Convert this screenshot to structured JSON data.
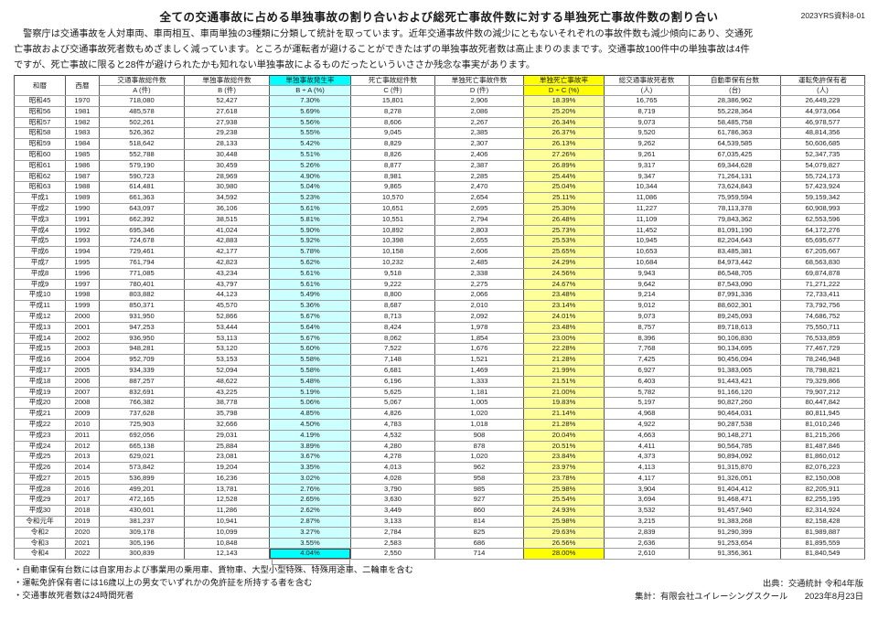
{
  "meta": {
    "title": "全ての交通事故に占める単独事故の割り合いおよび総死亡事故件数に対する単独死亡事故件数の割り合い",
    "doc_ref": "2023YRS資料8-01"
  },
  "intro": {
    "lines": [
      "　警察庁は交通事故を人対車両、車両相互、車両単独の3種類に分類して統計を取っています。近年交通事故件数の減少にともないそれぞれの事故件数も減少傾向にあり、交通死",
      "亡事故および交通事故死者数もめざましく減っています。ところが運転者が避けることができたはずの単独事故死者数は高止まりのままです。交通事故100件中の単独事故は4件",
      "ですが、死亡事故に限ると28件が避けられたかも知れない単独事故によるものだったといういささか残念な事実があります。"
    ]
  },
  "table": {
    "era_header": "和暦",
    "year_header": "西暦",
    "columns": [
      {
        "l1": "交通事故総件数",
        "l2": "A (件)"
      },
      {
        "l1": "単独事故総件数",
        "l2": "B (件)"
      },
      {
        "l1": "単独事故発生率",
        "l2": "B ÷ A (%)"
      },
      {
        "l1": "死亡事故総件数",
        "l2": "C (件)"
      },
      {
        "l1": "単独死亡事故件数",
        "l2": "D (件)"
      },
      {
        "l1": "単独死亡事故率",
        "l2": "D ÷ C (%)"
      },
      {
        "l1": "総交通事故死者数",
        "l2": "(人)"
      },
      {
        "l1": "自動車保有台数",
        "l2": "(台)"
      },
      {
        "l1": "運転免許保有者",
        "l2": "(人)"
      }
    ],
    "rows": [
      [
        "昭和45",
        "1970",
        "718,080",
        "52,427",
        "7.30%",
        "15,801",
        "2,906",
        "18.39%",
        "16,765",
        "28,386,962",
        "26,449,229"
      ],
      [
        "昭和56",
        "1981",
        "485,578",
        "27,618",
        "5.69%",
        "8,278",
        "2,086",
        "25.20%",
        "8,719",
        "55,228,364",
        "44,973,064"
      ],
      [
        "昭和57",
        "1982",
        "502,261",
        "27,938",
        "5.56%",
        "8,606",
        "2,267",
        "26.34%",
        "9,073",
        "58,485,758",
        "46,978,577"
      ],
      [
        "昭和58",
        "1983",
        "526,362",
        "29,238",
        "5.55%",
        "9,045",
        "2,385",
        "26.37%",
        "9,520",
        "61,786,363",
        "48,814,356"
      ],
      [
        "昭和59",
        "1984",
        "518,642",
        "28,133",
        "5.42%",
        "8,829",
        "2,307",
        "26.13%",
        "9,262",
        "64,539,585",
        "50,606,685"
      ],
      [
        "昭和60",
        "1985",
        "552,788",
        "30,448",
        "5.51%",
        "8,826",
        "2,406",
        "27.26%",
        "9,261",
        "67,035,425",
        "52,347,735"
      ],
      [
        "昭和61",
        "1986",
        "579,190",
        "30,459",
        "5.26%",
        "8,877",
        "2,387",
        "26.89%",
        "9,317",
        "69,344,628",
        "54,079,827"
      ],
      [
        "昭和62",
        "1987",
        "590,723",
        "28,969",
        "4.90%",
        "8,981",
        "2,285",
        "25.44%",
        "9,347",
        "71,264,131",
        "55,724,173"
      ],
      [
        "昭和63",
        "1988",
        "614,481",
        "30,980",
        "5.04%",
        "9,865",
        "2,470",
        "25.04%",
        "10,344",
        "73,624,843",
        "57,423,924"
      ],
      [
        "平成1",
        "1989",
        "661,363",
        "34,592",
        "5.23%",
        "10,570",
        "2,654",
        "25.11%",
        "11,086",
        "75,959,594",
        "59,159,342"
      ],
      [
        "平成2",
        "1990",
        "643,097",
        "36,106",
        "5.61%",
        "10,651",
        "2,695",
        "25.30%",
        "11,227",
        "78,113,378",
        "60,908,993"
      ],
      [
        "平成3",
        "1991",
        "662,392",
        "38,515",
        "5.81%",
        "10,551",
        "2,794",
        "26.48%",
        "11,109",
        "79,843,362",
        "62,553,596"
      ],
      [
        "平成4",
        "1992",
        "695,346",
        "41,024",
        "5.90%",
        "10,892",
        "2,803",
        "25.73%",
        "11,452",
        "81,091,190",
        "64,172,276"
      ],
      [
        "平成5",
        "1993",
        "724,678",
        "42,883",
        "5.92%",
        "10,398",
        "2,655",
        "25.53%",
        "10,945",
        "82,204,643",
        "65,695,677"
      ],
      [
        "平成6",
        "1994",
        "729,461",
        "42,177",
        "5.78%",
        "10,158",
        "2,606",
        "25.65%",
        "10,653",
        "83,485,381",
        "67,205,667"
      ],
      [
        "平成7",
        "1995",
        "761,794",
        "42,823",
        "5.62%",
        "10,232",
        "2,485",
        "24.29%",
        "10,684",
        "84,973,442",
        "68,563,830"
      ],
      [
        "平成8",
        "1996",
        "771,085",
        "43,234",
        "5.61%",
        "9,518",
        "2,338",
        "24.56%",
        "9,943",
        "86,548,705",
        "69,874,878"
      ],
      [
        "平成9",
        "1997",
        "780,401",
        "43,797",
        "5.61%",
        "9,222",
        "2,275",
        "24.67%",
        "9,642",
        "87,543,090",
        "71,271,222"
      ],
      [
        "平成10",
        "1998",
        "803,882",
        "44,123",
        "5.49%",
        "8,800",
        "2,066",
        "23.48%",
        "9,214",
        "87,991,336",
        "72,733,411"
      ],
      [
        "平成11",
        "1999",
        "850,371",
        "45,570",
        "5.36%",
        "8,687",
        "2,010",
        "23.14%",
        "9,012",
        "88,602,301",
        "73,792,756"
      ],
      [
        "平成12",
        "2000",
        "931,950",
        "52,866",
        "5.67%",
        "8,713",
        "2,092",
        "24.01%",
        "9,073",
        "89,245,093",
        "74,686,752"
      ],
      [
        "平成13",
        "2001",
        "947,253",
        "53,444",
        "5.64%",
        "8,424",
        "1,978",
        "23.48%",
        "8,757",
        "89,718,613",
        "75,550,711"
      ],
      [
        "平成14",
        "2002",
        "936,950",
        "53,113",
        "5.67%",
        "8,062",
        "1,854",
        "23.00%",
        "8,396",
        "90,106,830",
        "76,533,859"
      ],
      [
        "平成15",
        "2003",
        "948,281",
        "53,120",
        "5.60%",
        "7,522",
        "1,676",
        "22.28%",
        "7,768",
        "90,134,695",
        "77,467,729"
      ],
      [
        "平成16",
        "2004",
        "952,709",
        "53,153",
        "5.58%",
        "7,148",
        "1,521",
        "21.28%",
        "7,425",
        "90,456,094",
        "78,246,948"
      ],
      [
        "平成17",
        "2005",
        "934,339",
        "52,094",
        "5.58%",
        "6,681",
        "1,469",
        "21.99%",
        "6,927",
        "91,383,065",
        "78,798,821"
      ],
      [
        "平成18",
        "2006",
        "887,257",
        "48,622",
        "5.48%",
        "6,196",
        "1,333",
        "21.51%",
        "6,403",
        "91,443,421",
        "79,329,866"
      ],
      [
        "平成19",
        "2007",
        "832,691",
        "43,225",
        "5.19%",
        "5,625",
        "1,181",
        "21.00%",
        "5,782",
        "91,166,120",
        "79,907,212"
      ],
      [
        "平成20",
        "2008",
        "766,382",
        "38,778",
        "5.06%",
        "5,067",
        "1,005",
        "19.83%",
        "5,197",
        "90,827,260",
        "80,447,842"
      ],
      [
        "平成21",
        "2009",
        "737,628",
        "35,798",
        "4.85%",
        "4,826",
        "1,020",
        "21.14%",
        "4,968",
        "90,464,031",
        "80,811,945"
      ],
      [
        "平成22",
        "2010",
        "725,903",
        "32,666",
        "4.50%",
        "4,783",
        "1,018",
        "21.28%",
        "4,922",
        "90,287,538",
        "81,010,246"
      ],
      [
        "平成23",
        "2011",
        "692,056",
        "29,031",
        "4.19%",
        "4,532",
        "908",
        "20.04%",
        "4,663",
        "90,148,271",
        "81,215,266"
      ],
      [
        "平成24",
        "2012",
        "665,138",
        "25,884",
        "3.89%",
        "4,280",
        "878",
        "20.51%",
        "4,411",
        "90,564,785",
        "81,487,846"
      ],
      [
        "平成25",
        "2013",
        "629,021",
        "23,081",
        "3.67%",
        "4,278",
        "1,020",
        "23.84%",
        "4,373",
        "90,894,092",
        "81,860,012"
      ],
      [
        "平成26",
        "2014",
        "573,842",
        "19,204",
        "3.35%",
        "4,013",
        "962",
        "23.97%",
        "4,113",
        "91,315,870",
        "82,076,223"
      ],
      [
        "平成27",
        "2015",
        "536,899",
        "16,236",
        "3.02%",
        "4,028",
        "958",
        "23.78%",
        "4,117",
        "91,326,051",
        "82,150,008"
      ],
      [
        "平成28",
        "2016",
        "499,201",
        "13,781",
        "2.76%",
        "3,790",
        "985",
        "25.98%",
        "3,904",
        "91,404,412",
        "82,205,911"
      ],
      [
        "平成29",
        "2017",
        "472,165",
        "12,528",
        "2.65%",
        "3,630",
        "927",
        "25.54%",
        "3,694",
        "91,468,471",
        "82,255,195"
      ],
      [
        "平成30",
        "2018",
        "430,601",
        "11,286",
        "2.62%",
        "3,449",
        "860",
        "24.93%",
        "3,532",
        "91,457,940",
        "82,314,924"
      ],
      [
        "令和元年",
        "2019",
        "381,237",
        "10,941",
        "2.87%",
        "3,133",
        "814",
        "25.98%",
        "3,215",
        "91,383,268",
        "82,158,428"
      ],
      [
        "令和2",
        "2020",
        "309,178",
        "10,099",
        "3.27%",
        "2,784",
        "825",
        "29.63%",
        "2,839",
        "91,290,399",
        "81,989,887"
      ],
      [
        "令和3",
        "2021",
        "305,196",
        "10,848",
        "3.55%",
        "2,583",
        "686",
        "26.56%",
        "2,636",
        "91,253,654",
        "81,895,559"
      ],
      [
        "令和4",
        "2022",
        "300,839",
        "12,143",
        "4.04%",
        "2,550",
        "714",
        "28.00%",
        "2,610",
        "91,356,361",
        "81,840,549"
      ]
    ]
  },
  "footnotes": [
    "・自動車保有台数には自家用および事業用の乗用車、貨物車、大型小型特殊、特殊用途車、二輪車を含む",
    "・運転免許保有者には16歳以上の男女でいずれかの免許証を所持する者を含む",
    "・交通事故死者数は24時間死者"
  ],
  "source": {
    "line1": "出典：交通統計 令和4年版",
    "line2": "集計：有限会社ユイレーシングスクール　　2023年8月23日"
  },
  "colors": {
    "highlight_cyan_strong": "#00ffff",
    "highlight_cyan_light": "#ccffff",
    "highlight_yellow_strong": "#ffff00",
    "highlight_yellow_light": "#ffff9a",
    "border_vertical": "#595959",
    "border_horizontal": "#9f9f9f"
  }
}
